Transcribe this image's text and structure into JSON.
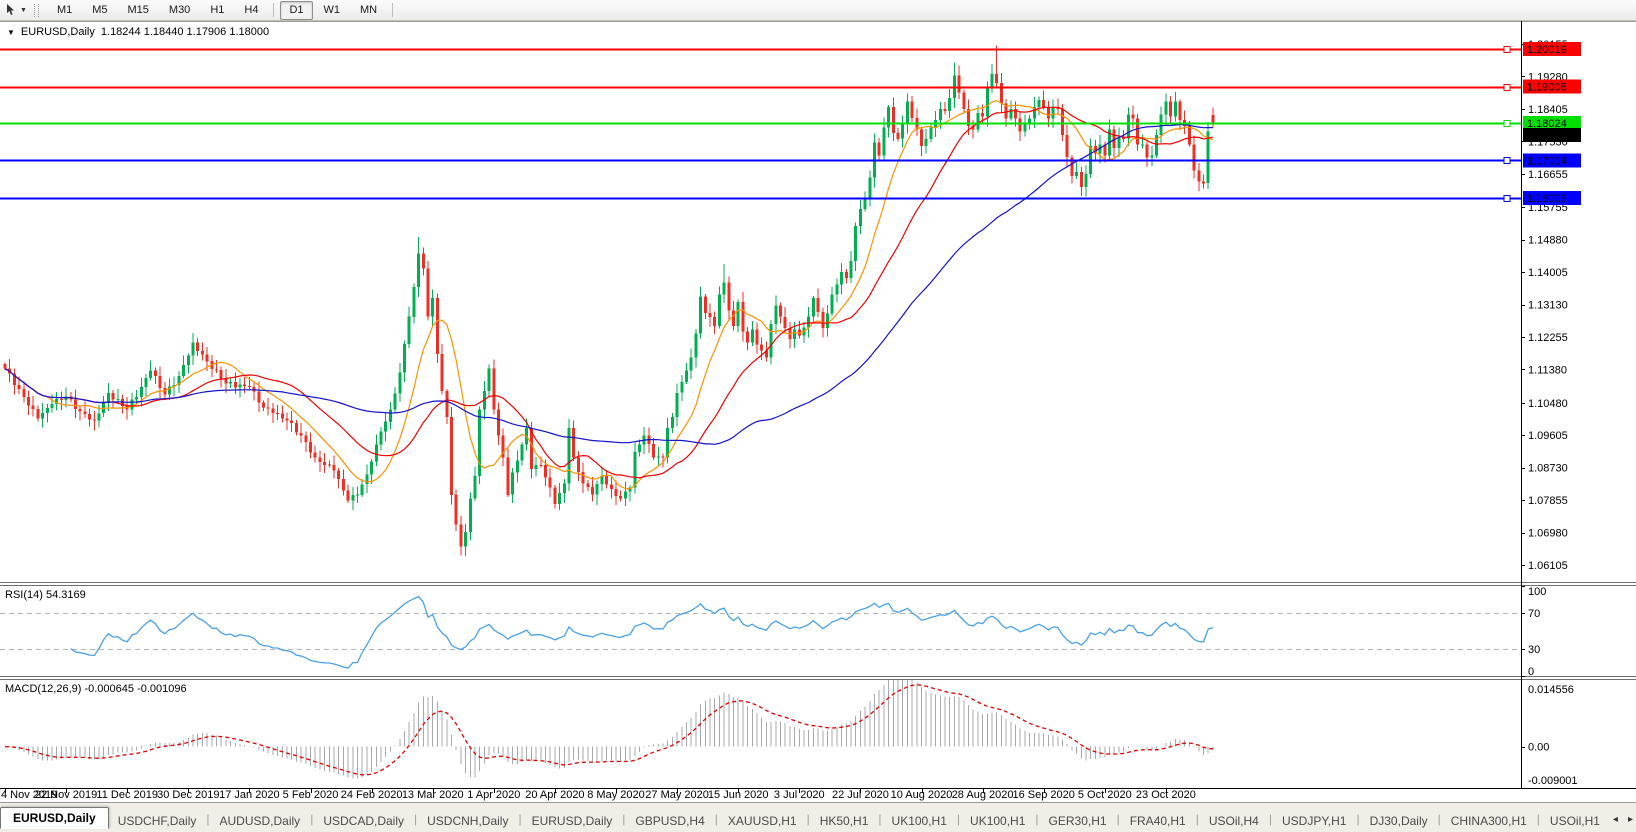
{
  "icons": {
    "dropdown_caret": "▼",
    "collapse_triangle": "▼",
    "scroll_left": "◂",
    "scroll_right": "▸"
  },
  "toolbar": {
    "timeframes": [
      "M1",
      "M5",
      "M15",
      "M30",
      "H1",
      "H4",
      "D1",
      "W1",
      "MN"
    ],
    "active_timeframe": "D1"
  },
  "chart_header": {
    "title": "EURUSD,Daily",
    "ohlc": "1.18244 1.18440 1.17906 1.18000"
  },
  "price_axis": {
    "ticks": [
      "1.20155",
      "1.19280",
      "1.18405",
      "1.17530",
      "1.16655",
      "1.15755",
      "1.14880",
      "1.14005",
      "1.13130",
      "1.12255",
      "1.11380",
      "1.10480",
      "1.09605",
      "1.08730",
      "1.07855",
      "1.06980",
      "1.06105"
    ]
  },
  "levels": [
    {
      "label": "1.20019",
      "value": 1.20019,
      "color": "#ff0000",
      "text_color": "#ffffff"
    },
    {
      "label": "1.19008",
      "value": 1.19008,
      "color": "#ff0000",
      "text_color": "#ffffff"
    },
    {
      "label": "1.18024",
      "value": 1.18024,
      "color": "#00e000",
      "text_color": "#000000"
    },
    {
      "label": "1.17014",
      "value": 1.17014,
      "color": "#0000ff",
      "text_color": "#ffffff"
    },
    {
      "label": "1.16003",
      "value": 1.16003,
      "color": "#0000ff",
      "text_color": "#ffffff"
    }
  ],
  "current_price": {
    "label": "1.18000",
    "value": 1.18,
    "bg": "#000000",
    "text_color": "#ffffff"
  },
  "rsi": {
    "label": "RSI(14) 54.3169",
    "period": 14,
    "value": 54.3169,
    "scale_labels": [
      "100",
      "70",
      "30",
      "0"
    ],
    "dashed_levels": [
      70,
      30
    ],
    "line_color": "#4aa0e8"
  },
  "macd": {
    "label": "MACD(12,26,9) -0.000645 -0.001096",
    "fast": 12,
    "slow": 26,
    "signal": 9,
    "main_value": -0.000645,
    "signal_value": -0.001096,
    "scale_top": "0.014556",
    "scale_zero": "0.00",
    "scale_bottom": "-0.009001",
    "vmax": 0.014556,
    "vmin": -0.009001,
    "hist_color": "#a9a9a9",
    "signal_color": "#e00000"
  },
  "date_axis": {
    "bars_per_label": 13,
    "labels": [
      "4 Nov 2019",
      "22 Nov 2019",
      "11 Dec 2019",
      "30 Dec 2019",
      "17 Jan 2020",
      "5 Feb 2020",
      "24 Feb 2020",
      "13 Mar 2020",
      "1 Apr 2020",
      "20 Apr 2020",
      "8 May 2020",
      "27 May 2020",
      "15 Jun 2020",
      "3 Jul 2020",
      "22 Jul 2020",
      "10 Aug 2020",
      "28 Aug 2020",
      "16 Sep 2020",
      "5 Oct 2020",
      "23 Oct 2020"
    ]
  },
  "tabs": {
    "separator": "|",
    "items": [
      {
        "label": "EURUSD,Daily",
        "active": true
      },
      {
        "label": "USDCHF,Daily",
        "active": false
      },
      {
        "label": "AUDUSD,Daily",
        "active": false
      },
      {
        "label": "USDCAD,Daily",
        "active": false
      },
      {
        "label": "USDCNH,Daily",
        "active": false
      },
      {
        "label": "EURUSD,Daily",
        "active": false
      },
      {
        "label": "GBPUSD,H4",
        "active": false
      },
      {
        "label": "XAUUSD,H1",
        "active": false
      },
      {
        "label": "HK50,H1",
        "active": false
      },
      {
        "label": "UK100,H1",
        "active": false
      },
      {
        "label": "UK100,H1",
        "active": false
      },
      {
        "label": "GER30,H1",
        "active": false
      },
      {
        "label": "FRA40,H1",
        "active": false
      },
      {
        "label": "USOil,H4",
        "active": false
      },
      {
        "label": "USDJPY,H1",
        "active": false
      },
      {
        "label": "DJ30,Daily",
        "active": false
      },
      {
        "label": "CHINA300,H1",
        "active": false
      },
      {
        "label": "USOil,H1",
        "active": false
      }
    ]
  },
  "chart_data": {
    "type": "candlestick",
    "symbol": "EURUSD",
    "timeframe": "Daily",
    "bars": 258,
    "last_ohlc": {
      "open": 1.18244,
      "high": 1.1844,
      "low": 1.17906,
      "close": 1.18
    },
    "up_color": "#00b050",
    "down_color": "#ef2e24",
    "ma": [
      {
        "period": 10,
        "color": "#ff9000"
      },
      {
        "period": 24,
        "color": "#f00000"
      },
      {
        "period": 60,
        "color": "#1414cc"
      }
    ],
    "price_path": [
      [
        0,
        1.114
      ],
      [
        3,
        1.1085
      ],
      [
        7,
        1.1005
      ],
      [
        10,
        1.1045
      ],
      [
        13,
        1.1065
      ],
      [
        16,
        1.1025
      ],
      [
        19,
        1.1
      ],
      [
        22,
        1.1075
      ],
      [
        26,
        1.103
      ],
      [
        29,
        1.109
      ],
      [
        31,
        1.1135
      ],
      [
        34,
        1.107
      ],
      [
        37,
        1.112
      ],
      [
        40,
        1.121
      ],
      [
        43,
        1.116
      ],
      [
        47,
        1.11
      ],
      [
        52,
        1.109
      ],
      [
        55,
        1.1035
      ],
      [
        57,
        1.102
      ],
      [
        60,
        1.1
      ],
      [
        63,
        1.096
      ],
      [
        66,
        1.09
      ],
      [
        70,
        1.0865
      ],
      [
        73,
        1.0785
      ],
      [
        75,
        1.08
      ],
      [
        77,
        1.0855
      ],
      [
        78,
        1.089
      ],
      [
        80,
        1.097
      ],
      [
        82,
        1.103
      ],
      [
        84,
        1.113
      ],
      [
        86,
        1.128
      ],
      [
        87,
        1.136
      ],
      [
        88,
        1.145
      ],
      [
        89,
        1.141
      ],
      [
        90,
        1.128
      ],
      [
        91,
        1.133
      ],
      [
        92,
        1.118
      ],
      [
        93,
        1.108
      ],
      [
        94,
        1.101
      ],
      [
        95,
        1.08
      ],
      [
        96,
        1.072
      ],
      [
        97,
        1.066
      ],
      [
        98,
        1.07
      ],
      [
        99,
        1.079
      ],
      [
        100,
        1.085
      ],
      [
        101,
        1.103
      ],
      [
        102,
        1.108
      ],
      [
        103,
        1.114
      ],
      [
        104,
        1.103
      ],
      [
        105,
        1.096
      ],
      [
        106,
        1.09
      ],
      [
        107,
        1.08
      ],
      [
        108,
        1.086
      ],
      [
        110,
        1.0935
      ],
      [
        111,
        1.098
      ],
      [
        112,
        1.087
      ],
      [
        114,
        1.088
      ],
      [
        116,
        1.082
      ],
      [
        117,
        1.0775
      ],
      [
        119,
        1.083
      ],
      [
        120,
        1.098
      ],
      [
        121,
        1.09
      ],
      [
        123,
        1.083
      ],
      [
        125,
        1.08
      ],
      [
        127,
        1.085
      ],
      [
        129,
        1.0815
      ],
      [
        131,
        1.079
      ],
      [
        133,
        1.082
      ],
      [
        134,
        1.0915
      ],
      [
        136,
        1.096
      ],
      [
        138,
        1.09
      ],
      [
        140,
        1.09
      ],
      [
        141,
        1.098
      ],
      [
        142,
        1.101
      ],
      [
        143,
        1.1075
      ],
      [
        145,
        1.1135
      ],
      [
        146,
        1.117
      ],
      [
        147,
        1.1235
      ],
      [
        148,
        1.1335
      ],
      [
        149,
        1.129
      ],
      [
        151,
        1.1255
      ],
      [
        152,
        1.134
      ],
      [
        153,
        1.1373
      ],
      [
        154,
        1.1297
      ],
      [
        155,
        1.1255
      ],
      [
        156,
        1.132
      ],
      [
        157,
        1.124
      ],
      [
        158,
        1.121
      ],
      [
        159,
        1.1245
      ],
      [
        160,
        1.1205
      ],
      [
        162,
        1.117
      ],
      [
        163,
        1.126
      ],
      [
        164,
        1.131
      ],
      [
        166,
        1.125
      ],
      [
        167,
        1.122
      ],
      [
        168,
        1.1245
      ],
      [
        169,
        1.123
      ],
      [
        171,
        1.128
      ],
      [
        172,
        1.133
      ],
      [
        174,
        1.125
      ],
      [
        176,
        1.134
      ],
      [
        178,
        1.14
      ],
      [
        179,
        1.1385
      ],
      [
        180,
        1.143
      ],
      [
        181,
        1.1525
      ],
      [
        182,
        1.157
      ],
      [
        183,
        1.16
      ],
      [
        184,
        1.1655
      ],
      [
        185,
        1.175
      ],
      [
        186,
        1.1715
      ],
      [
        187,
        1.179
      ],
      [
        188,
        1.1845
      ],
      [
        189,
        1.1775
      ],
      [
        190,
        1.176
      ],
      [
        191,
        1.18
      ],
      [
        192,
        1.186
      ],
      [
        194,
        1.1785
      ],
      [
        195,
        1.174
      ],
      [
        197,
        1.179
      ],
      [
        199,
        1.184
      ],
      [
        200,
        1.1835
      ],
      [
        201,
        1.187
      ],
      [
        202,
        1.193
      ],
      [
        204,
        1.184
      ],
      [
        205,
        1.1795
      ],
      [
        206,
        1.1785
      ],
      [
        207,
        1.183
      ],
      [
        208,
        1.182
      ],
      [
        209,
        1.19
      ],
      [
        210,
        1.1935
      ],
      [
        211,
        1.191
      ],
      [
        212,
        1.1855
      ],
      [
        213,
        1.1815
      ],
      [
        214,
        1.184
      ],
      [
        215,
        1.1815
      ],
      [
        216,
        1.178
      ],
      [
        217,
        1.18
      ],
      [
        218,
        1.1815
      ],
      [
        219,
        1.1845
      ],
      [
        220,
        1.1865
      ],
      [
        221,
        1.1845
      ],
      [
        222,
        1.1815
      ],
      [
        223,
        1.1845
      ],
      [
        224,
        1.184
      ],
      [
        225,
        1.177
      ],
      [
        226,
        1.171
      ],
      [
        227,
        1.166
      ],
      [
        228,
        1.167
      ],
      [
        229,
        1.163
      ],
      [
        230,
        1.1665
      ],
      [
        231,
        1.174
      ],
      [
        232,
        1.172
      ],
      [
        233,
        1.1745
      ],
      [
        234,
        1.1715
      ],
      [
        235,
        1.1785
      ],
      [
        236,
        1.1735
      ],
      [
        237,
        1.1765
      ],
      [
        238,
        1.176
      ],
      [
        239,
        1.1825
      ],
      [
        240,
        1.1815
      ],
      [
        241,
        1.1745
      ],
      [
        242,
        1.1745
      ],
      [
        243,
        1.171
      ],
      [
        244,
        1.1715
      ],
      [
        245,
        1.177
      ],
      [
        246,
        1.1825
      ],
      [
        247,
        1.186
      ],
      [
        248,
        1.182
      ],
      [
        249,
        1.186
      ],
      [
        250,
        1.181
      ],
      [
        251,
        1.1795
      ],
      [
        252,
        1.1745
      ],
      [
        253,
        1.1675
      ],
      [
        254,
        1.1645
      ],
      [
        255,
        1.164
      ],
      [
        256,
        1.178
      ],
      [
        257,
        1.18
      ]
    ],
    "wick_overrides": {
      "73": {
        "low": 1.0778
      },
      "88": {
        "high": 1.1495
      },
      "97": {
        "low": 1.0636
      },
      "153": {
        "high": 1.1422
      },
      "202": {
        "high": 1.1966
      },
      "211": {
        "high": 1.2011
      },
      "257": {
        "open": 1.18244,
        "high": 1.1844,
        "low": 1.17906,
        "close": 1.18
      }
    }
  }
}
